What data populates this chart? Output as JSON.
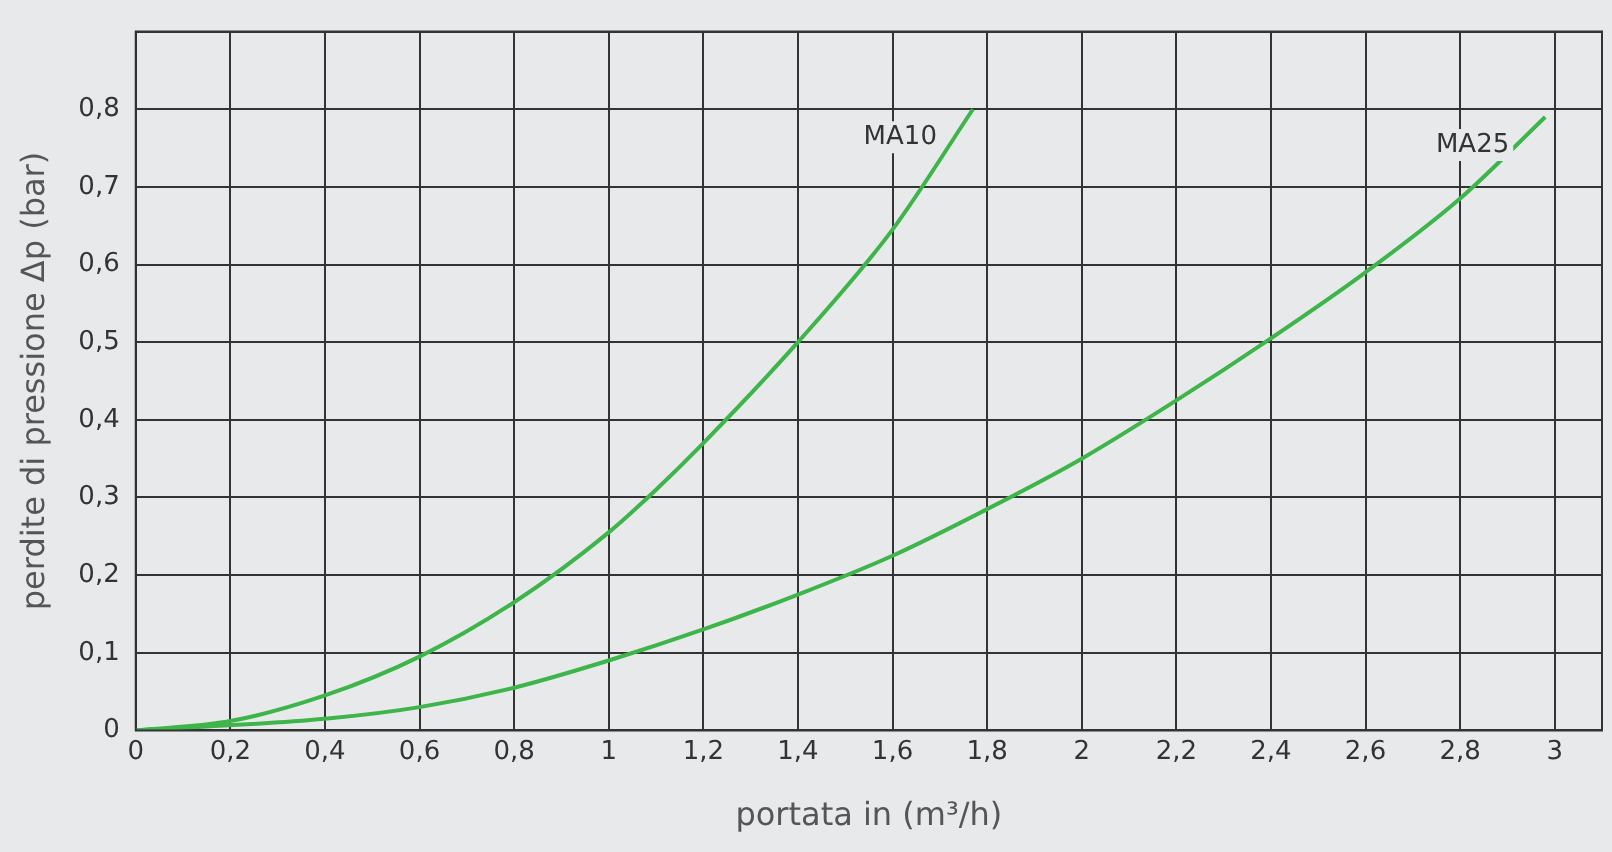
{
  "chart_data": {
    "type": "line",
    "xlabel": "portata in (m³/h)",
    "ylabel": "perdite di pressione Δp (bar)",
    "series": [
      {
        "name": "MA10",
        "color": "#3db54a",
        "x": [
          0,
          0.2,
          0.4,
          0.6,
          0.8,
          1.0,
          1.1,
          1.2,
          1.4,
          1.6,
          1.77
        ],
        "values": [
          0,
          0.012,
          0.045,
          0.095,
          0.165,
          0.255,
          0.31,
          0.37,
          0.5,
          0.645,
          0.8
        ]
      },
      {
        "name": "MA25",
        "color": "#3db54a",
        "x": [
          0,
          0.4,
          0.6,
          0.8,
          1.0,
          1.2,
          1.4,
          1.6,
          1.8,
          2.0,
          2.2,
          2.4,
          2.6,
          2.8,
          2.98
        ],
        "values": [
          0,
          0.015,
          0.03,
          0.055,
          0.09,
          0.13,
          0.175,
          0.225,
          0.285,
          0.35,
          0.425,
          0.505,
          0.59,
          0.685,
          0.79
        ]
      }
    ],
    "xlim": [
      0,
      3.1
    ],
    "xticks": [
      0,
      {
        "value": 0.2,
        "label": "0,2"
      },
      {
        "value": 0.4,
        "label": "0,4"
      },
      {
        "value": 0.6,
        "label": "0,6"
      },
      {
        "value": 0.8,
        "label": "0,8"
      },
      1,
      {
        "value": 1.2,
        "label": "1,2"
      },
      {
        "value": 1.4,
        "label": "1,4"
      },
      {
        "value": 1.6,
        "label": "1,6"
      },
      {
        "value": 1.8,
        "label": "1,8"
      },
      2,
      {
        "value": 2.2,
        "label": "2,2"
      },
      {
        "value": 2.4,
        "label": "2,4"
      },
      {
        "value": 2.6,
        "label": "2,6"
      },
      {
        "value": 2.8,
        "label": "2,8"
      },
      3
    ],
    "ylim": [
      0,
      0.9
    ],
    "yticks": [
      0,
      {
        "value": 0.1,
        "label": "0,1"
      },
      {
        "value": 0.2,
        "label": "0,2"
      },
      {
        "value": 0.3,
        "label": "0,3"
      },
      {
        "value": 0.4,
        "label": "0,4"
      },
      {
        "value": 0.5,
        "label": "0,5"
      },
      {
        "value": 0.6,
        "label": "0,6"
      },
      {
        "value": 0.7,
        "label": "0,7"
      },
      {
        "value": 0.8,
        "label": "0,8"
      },
      {
        "value": 0.9,
        "label": null
      }
    ],
    "grid": true,
    "legend": false,
    "marker": "none",
    "line_style": "solid"
  }
}
